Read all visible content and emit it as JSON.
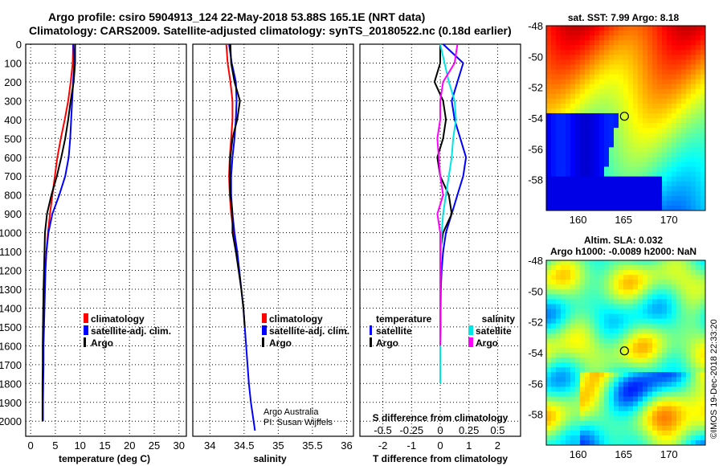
{
  "title": {
    "line1": "Argo profile: csiro 5904913_124 22-May-2018 53.88S 165.1E (NRT data)",
    "line2": "Climatology: CARS2009. Satellite-adjusted climatology: synTS_20180522.nc (0.18d earlier)"
  },
  "colors": {
    "argo": "#000000",
    "climatology": "#ff0000",
    "satellite": "#0000ff",
    "sat_salinity": "#00e5e5",
    "clim_salinity": "#ff00ff"
  },
  "chart_data": [
    {
      "type": "line",
      "panel": "temperature",
      "xlabel": "temperature (deg C)",
      "ylabel": "",
      "xlim": [
        -1,
        31.5
      ],
      "ylim": [
        2080,
        0
      ],
      "xticks": [
        0,
        5,
        10,
        15,
        20,
        25,
        30
      ],
      "yticks": [
        0,
        100,
        200,
        300,
        400,
        500,
        600,
        700,
        800,
        900,
        1000,
        1100,
        1200,
        1300,
        1400,
        1500,
        1600,
        1700,
        1800,
        1900,
        2000
      ],
      "grid": true,
      "legend_position": "lower-center",
      "legend": [
        "climatology",
        "satellite-adj. clim.",
        "Argo"
      ],
      "series": [
        {
          "name": "climatology",
          "color": "#ff0000",
          "x": [
            8.6,
            8.5,
            8.1,
            7.6,
            6.9,
            6.1,
            5.4,
            4.9,
            4.4,
            3.9,
            3.5,
            3.2,
            2.9,
            2.8,
            2.7,
            2.65
          ],
          "y": [
            0,
            100,
            200,
            300,
            400,
            500,
            600,
            700,
            800,
            900,
            1000,
            1100,
            1200,
            1300,
            1400,
            1500
          ]
        },
        {
          "name": "satellite-adj. clim.",
          "color": "#0000ff",
          "x": [
            8.6,
            8.8,
            8.6,
            8.4,
            8.2,
            8.0,
            7.7,
            7.0,
            5.8,
            4.4,
            3.6,
            3.2,
            3.0,
            2.9,
            2.8,
            2.7,
            2.6,
            2.6,
            2.55,
            2.5,
            2.5
          ],
          "y": [
            0,
            100,
            200,
            300,
            400,
            500,
            600,
            700,
            800,
            900,
            1000,
            1100,
            1200,
            1300,
            1400,
            1500,
            1600,
            1700,
            1800,
            1900,
            2000
          ]
        },
        {
          "name": "Argo",
          "color": "#000000",
          "x": [
            9.0,
            9.0,
            8.7,
            8.1,
            7.6,
            7.0,
            6.2,
            5.3,
            4.2,
            3.3,
            2.9,
            2.8,
            2.7,
            2.6,
            2.55,
            2.5,
            2.45,
            2.45,
            2.4,
            2.4,
            2.4
          ],
          "y": [
            0,
            100,
            200,
            300,
            400,
            500,
            600,
            700,
            800,
            900,
            1000,
            1100,
            1200,
            1300,
            1400,
            1500,
            1600,
            1700,
            1800,
            1900,
            2000
          ]
        }
      ]
    },
    {
      "type": "line",
      "panel": "salinity",
      "xlabel": "salinity",
      "ylabel": "",
      "xlim": [
        33.75,
        36.1
      ],
      "ylim": [
        2080,
        0
      ],
      "xticks": [
        34,
        34.5,
        35,
        35.5,
        36
      ],
      "grid": true,
      "legend_position": "center",
      "legend": [
        "climatology",
        "satellite-adj. clim.",
        "Argo"
      ],
      "annotations": [
        "Argo Australia",
        "PI: Susan Wijffels"
      ],
      "series": [
        {
          "name": "climatology",
          "color": "#ff0000",
          "x": [
            34.24,
            34.26,
            34.3,
            34.33,
            34.33,
            34.31,
            34.29,
            34.28,
            34.29,
            34.31,
            34.35,
            34.39
          ],
          "y": [
            0,
            100,
            200,
            300,
            400,
            500,
            600,
            700,
            800,
            900,
            1000,
            1100
          ]
        },
        {
          "name": "satellite-adj. clim.",
          "color": "#0000ff",
          "x": [
            34.28,
            34.32,
            34.38,
            34.39,
            34.38,
            34.36,
            34.33,
            34.31,
            34.31,
            34.33,
            34.36,
            34.4,
            34.43,
            34.46,
            34.49,
            34.51,
            34.53,
            34.55,
            34.57,
            34.6,
            34.64,
            34.66
          ],
          "y": [
            0,
            100,
            200,
            300,
            400,
            500,
            600,
            700,
            800,
            900,
            1000,
            1100,
            1200,
            1300,
            1400,
            1500,
            1600,
            1700,
            1800,
            1900,
            2000,
            2050
          ]
        },
        {
          "name": "Argo",
          "color": "#000000",
          "x": [
            34.3,
            34.31,
            34.36,
            34.44,
            34.4,
            34.33,
            34.3,
            34.29,
            34.3,
            34.33,
            34.33,
            34.38,
            34.42,
            34.46,
            34.49,
            34.51
          ],
          "y": [
            0,
            100,
            200,
            300,
            400,
            500,
            600,
            700,
            800,
            900,
            1000,
            1100,
            1200,
            1300,
            1400,
            1500
          ]
        }
      ]
    },
    {
      "type": "line",
      "panel": "differences",
      "xlabel": "T difference from climatology",
      "x2label": "S difference from climatology",
      "xlim": [
        -2.8,
        2.8
      ],
      "ylim": [
        2080,
        0
      ],
      "xticks": [
        -2,
        -1,
        0,
        1,
        2
      ],
      "x2ticks": [
        "-0.5",
        "-0.25",
        "0",
        "0.25",
        "0.5"
      ],
      "grid": true,
      "legend_position": "center",
      "legend_headers": [
        "temperature",
        "salinity"
      ],
      "legend_left": [
        "satellite",
        "Argo"
      ],
      "legend_right": [
        "satellite",
        "Argo"
      ],
      "series": [
        {
          "name": "satellite",
          "color": "#0000ff",
          "x": [
            0.1,
            0.8,
            0.6,
            0.4,
            0.5,
            0.7,
            0.9,
            0.8,
            0.6,
            0.4,
            0.2,
            0.1,
            0.05,
            0.02,
            0.01,
            0.01,
            0.0
          ],
          "y": [
            0,
            100,
            200,
            300,
            400,
            500,
            600,
            700,
            800,
            900,
            1000,
            1100,
            1200,
            1300,
            1400,
            1500,
            1600
          ]
        },
        {
          "name": "Argo",
          "color": "#000000",
          "x": [
            0.0,
            0.0,
            -0.2,
            0.1,
            0.2,
            0.1,
            -0.1,
            0.0,
            0.3,
            0.4,
            0.1,
            0.0,
            0.0,
            0.0,
            0.0,
            0.0,
            0.0
          ],
          "y": [
            0,
            100,
            200,
            300,
            400,
            500,
            600,
            700,
            800,
            900,
            1000,
            1100,
            1200,
            1300,
            1400,
            1500,
            1600
          ]
        },
        {
          "name": "satellite",
          "color": "#00e5e5",
          "x": [
            0.0,
            0.15,
            0.3,
            0.5,
            0.55,
            0.45,
            0.4,
            0.3,
            0.2,
            0.1,
            0.05,
            0.02,
            0.01,
            0.0,
            0.0,
            0.0,
            0.0,
            0.0,
            0.0
          ],
          "y": [
            0,
            100,
            200,
            300,
            400,
            500,
            600,
            700,
            800,
            900,
            1000,
            1100,
            1200,
            1300,
            1400,
            1500,
            1600,
            1700,
            1800
          ]
        },
        {
          "name": "Argo",
          "color": "#ff00ff",
          "x": [
            0.6,
            0.5,
            0.1,
            0.0,
            0.0,
            -0.1,
            -0.05,
            0.0,
            0.1,
            -0.1,
            0.0,
            0.0,
            0.0,
            0.0,
            0.0,
            0.0,
            0.0
          ],
          "y": [
            0,
            100,
            200,
            300,
            400,
            500,
            600,
            700,
            800,
            900,
            1000,
            1100,
            1200,
            1300,
            1400,
            1500,
            1600
          ]
        }
      ]
    },
    {
      "type": "heatmap",
      "panel": "sst-map",
      "title": "sat. SST: 7.99 Argo: 8.18",
      "xlim": [
        156.5,
        174
      ],
      "ylim": [
        -60,
        -48
      ],
      "xticks": [
        160,
        165,
        170
      ],
      "yticks": [
        -48,
        -50,
        -52,
        -54,
        -56,
        -58
      ],
      "marker": {
        "lon": 165.1,
        "lat": -53.88
      }
    },
    {
      "type": "heatmap",
      "panel": "sla-map",
      "title": "Altim. SLA: 0.032",
      "subtitle": "Argo h1000: -0.0089 h2000: NaN",
      "xlim": [
        156.5,
        174
      ],
      "ylim": [
        -60,
        -48
      ],
      "xticks": [
        160,
        165,
        170
      ],
      "yticks": [
        -48,
        -50,
        -52,
        -54,
        -56,
        -58
      ],
      "marker": {
        "lon": 165.1,
        "lat": -53.88
      }
    }
  ],
  "credit": "©IMOS 19-Dec-2018 22:33:20"
}
